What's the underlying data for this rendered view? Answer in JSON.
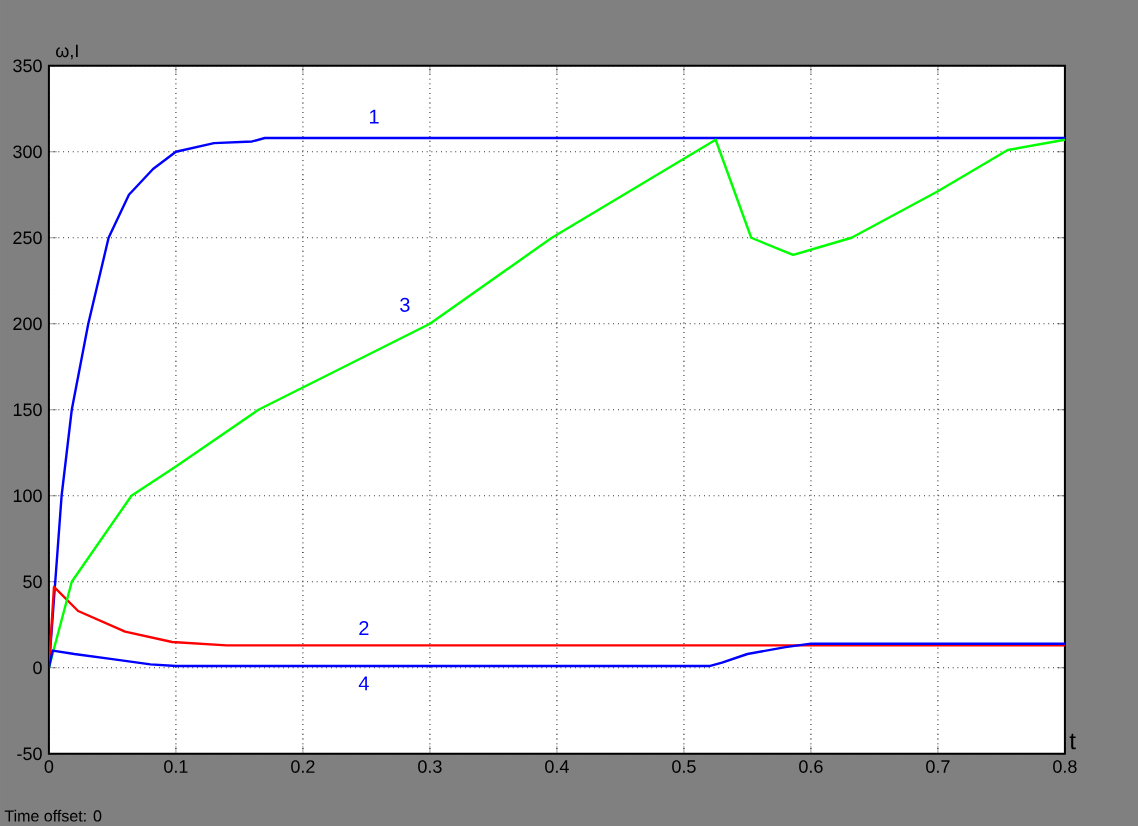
{
  "chart_data": {
    "type": "line",
    "xlabel": "t",
    "ylabel": "ω,I",
    "xlim": [
      0,
      0.8
    ],
    "ylim": [
      -50,
      350
    ],
    "xticks": [
      0,
      0.1,
      0.2,
      0.3,
      0.4,
      0.5,
      0.6,
      0.7,
      0.8
    ],
    "yticks": [
      -50,
      0,
      50,
      100,
      150,
      200,
      250,
      300,
      350
    ],
    "grid": true,
    "line_style": "solid",
    "marker": "none",
    "series": [
      {
        "name": "1",
        "color": "#0000ff",
        "x": [
          0,
          0.005,
          0.01,
          0.018,
          0.031,
          0.047,
          0.063,
          0.082,
          0.1,
          0.13,
          0.16,
          0.17,
          0.8
        ],
        "values": [
          0,
          50,
          100,
          150,
          200,
          250,
          275,
          290,
          300,
          305,
          306,
          308,
          308
        ]
      },
      {
        "name": "2",
        "color": "#ff0000",
        "x": [
          0,
          0.004,
          0.023,
          0.06,
          0.097,
          0.14,
          0.8
        ],
        "values": [
          0,
          47,
          33,
          21,
          15,
          13,
          13
        ]
      },
      {
        "name": "3",
        "color": "#00ff00",
        "x": [
          0,
          0.018,
          0.065,
          0.1,
          0.165,
          0.3,
          0.396,
          0.525,
          0.553,
          0.586,
          0.632,
          0.7,
          0.755,
          0.8
        ],
        "values": [
          0,
          50,
          100,
          117,
          150,
          200,
          250,
          307,
          250,
          240,
          250,
          277,
          301,
          307
        ]
      },
      {
        "name": "4",
        "color": "#0000ff",
        "x": [
          0,
          0.003,
          0.02,
          0.05,
          0.08,
          0.1,
          0.52,
          0.53,
          0.55,
          0.58,
          0.6,
          0.8
        ],
        "values": [
          0,
          10,
          8,
          5,
          2,
          1,
          1,
          3,
          8,
          12,
          14,
          14
        ]
      }
    ],
    "annotations": [
      "Time offset:  0"
    ]
  }
}
